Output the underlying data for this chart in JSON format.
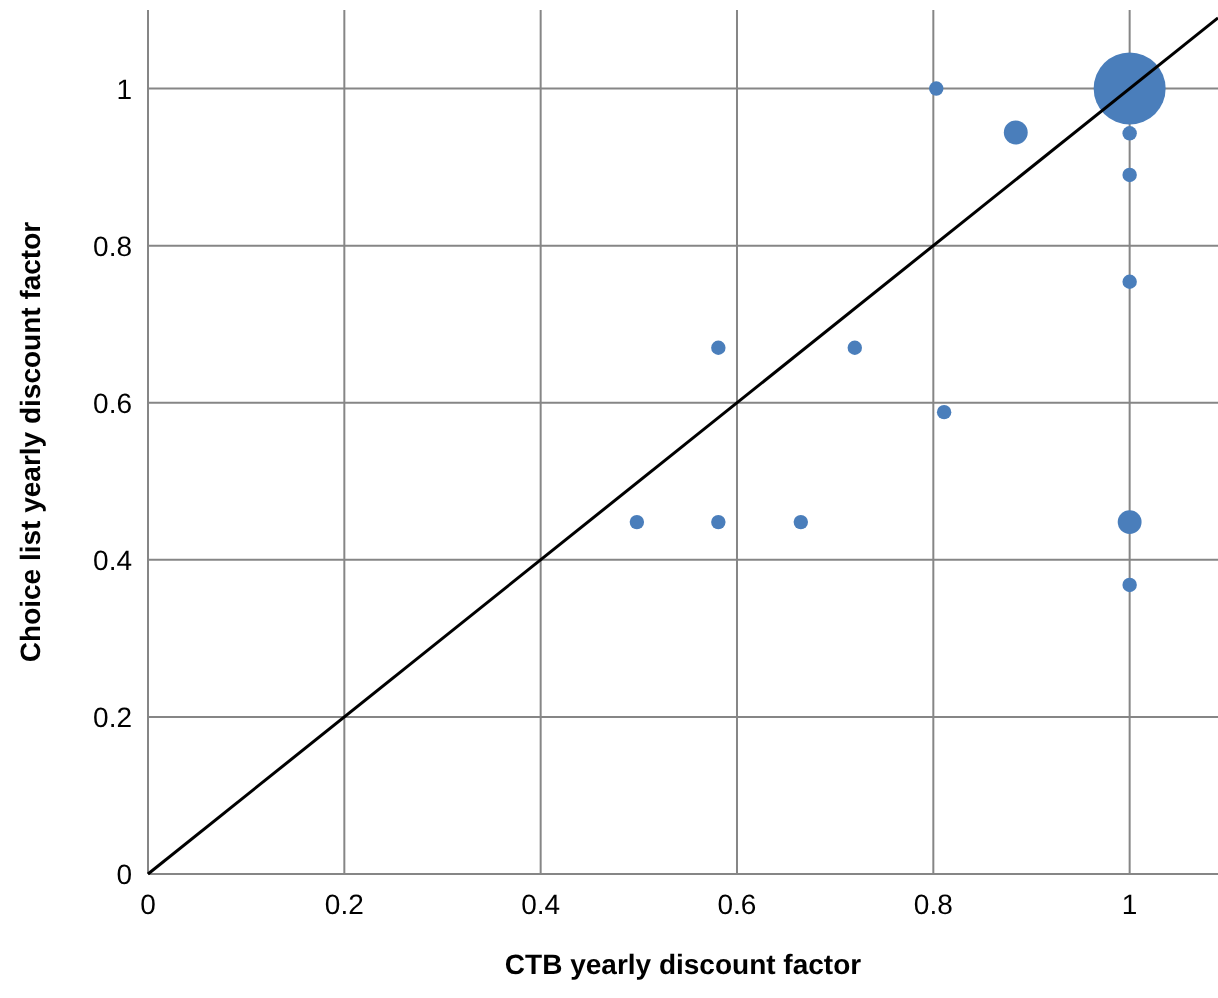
{
  "chart_data": {
    "type": "bubble",
    "xlabel": "CTB yearly discount factor",
    "ylabel": "Choice list yearly discount factor",
    "xlim": [
      0,
      1.09
    ],
    "ylim": [
      0,
      1.1
    ],
    "xticks": [
      0,
      0.2,
      0.4,
      0.6,
      0.8,
      1
    ],
    "yticks": [
      0,
      0.2,
      0.4,
      0.6,
      0.8,
      1
    ],
    "grid": true,
    "series": [
      {
        "color": "#4a7ebb",
        "x": [
          0.803,
          1,
          0.884,
          1,
          1,
          1,
          0.581,
          0.72,
          0.811,
          0.498,
          0.581,
          0.665,
          1,
          1
        ],
        "values": [
          1,
          1,
          0.944,
          0.943,
          0.89,
          0.754,
          0.67,
          0.67,
          0.588,
          0.448,
          0.448,
          0.448,
          0.448,
          0.368
        ],
        "sizes": [
          0.04,
          1,
          0.11,
          0.04,
          0.04,
          0.04,
          0.04,
          0.04,
          0.04,
          0.04,
          0.04,
          0.04,
          0.11,
          0.04
        ]
      },
      {
        "type": "line",
        "color": "#000000",
        "x": [
          0,
          1.09
        ],
        "values": [
          0,
          1.09
        ]
      }
    ]
  }
}
